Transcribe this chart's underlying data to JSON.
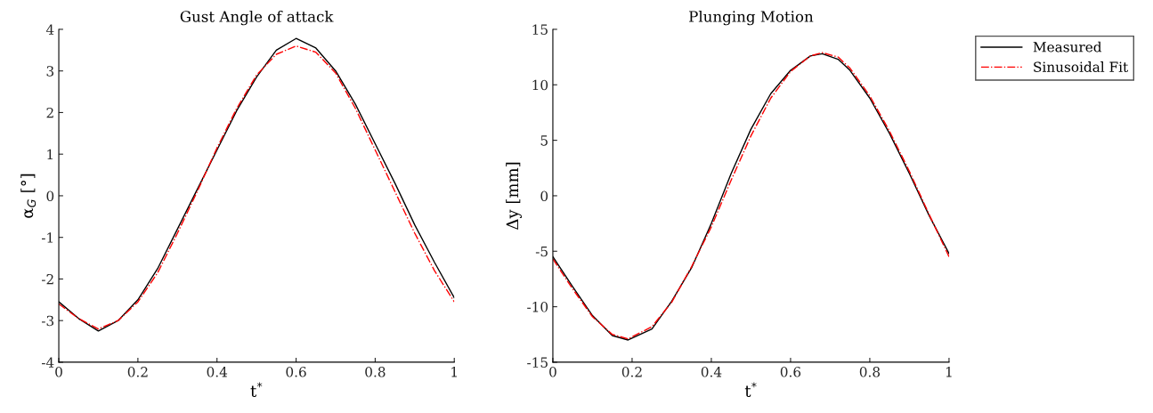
{
  "chart_data": [
    {
      "type": "line",
      "title": "Gust Angle of attack",
      "xlabel": "t$^{*}$",
      "ylabel": "α$_{G}$ [°]",
      "x": [
        0,
        0.05,
        0.1,
        0.15,
        0.2,
        0.25,
        0.3,
        0.35,
        0.4,
        0.45,
        0.5,
        0.55,
        0.6,
        0.65,
        0.7,
        0.75,
        0.8,
        0.85,
        0.9,
        0.95,
        1.0
      ],
      "series": [
        {
          "color": "#000000",
          "line_style": "solid",
          "values": [
            -2.55,
            -2.95,
            -3.25,
            -3.0,
            -2.5,
            -1.75,
            -0.8,
            0.15,
            1.1,
            2.05,
            2.85,
            3.5,
            3.78,
            3.55,
            3.0,
            2.2,
            1.25,
            0.3,
            -0.7,
            -1.6,
            -2.45
          ]
        },
        {
          "color": "#ff0000",
          "line_style": "dashed",
          "values": [
            -2.6,
            -2.95,
            -3.2,
            -3.0,
            -2.55,
            -1.85,
            -0.9,
            0.1,
            1.15,
            2.1,
            2.9,
            3.4,
            3.6,
            3.45,
            2.95,
            2.1,
            1.1,
            0.1,
            -0.9,
            -1.8,
            -2.55
          ]
        }
      ],
      "xlim": [
        0,
        1
      ],
      "xticks": [
        0,
        0.2,
        0.4,
        0.6,
        0.8,
        1
      ],
      "ylim": [
        -4,
        4
      ],
      "yticks": [
        -4,
        -3,
        -2,
        -1,
        0,
        1,
        2,
        3,
        4
      ],
      "grid": false,
      "legend": false
    },
    {
      "type": "line",
      "title": "Plunging Motion",
      "xlabel": "t$^{*}$",
      "ylabel": "Δy [mm]",
      "x": [
        0,
        0.05,
        0.1,
        0.15,
        0.19,
        0.25,
        0.3,
        0.35,
        0.4,
        0.45,
        0.5,
        0.55,
        0.6,
        0.65,
        0.68,
        0.72,
        0.75,
        0.8,
        0.85,
        0.9,
        0.95,
        1.0
      ],
      "series": [
        {
          "name": "Measured",
          "color": "#000000",
          "line_style": "solid",
          "values": [
            -5.5,
            -8.2,
            -10.8,
            -12.6,
            -13.0,
            -12.0,
            -9.5,
            -6.5,
            -2.5,
            2.0,
            6.0,
            9.2,
            11.3,
            12.6,
            12.8,
            12.3,
            11.3,
            8.8,
            5.6,
            2.0,
            -1.8,
            -5.2
          ]
        },
        {
          "name": "Sinusoidal Fit",
          "color": "#ff0000",
          "line_style": "dashed",
          "values": [
            -5.7,
            -8.4,
            -10.9,
            -12.5,
            -12.9,
            -11.8,
            -9.6,
            -6.4,
            -2.8,
            1.4,
            5.4,
            8.8,
            11.2,
            12.6,
            12.9,
            12.5,
            11.5,
            9.0,
            5.8,
            2.2,
            -1.7,
            -5.5
          ]
        }
      ],
      "xlim": [
        0,
        1
      ],
      "xticks": [
        0,
        0.2,
        0.4,
        0.6,
        0.8,
        1
      ],
      "ylim": [
        -15,
        15
      ],
      "yticks": [
        -15,
        -10,
        -5,
        0,
        5,
        10,
        15
      ],
      "grid": false,
      "legend": "top right"
    }
  ]
}
